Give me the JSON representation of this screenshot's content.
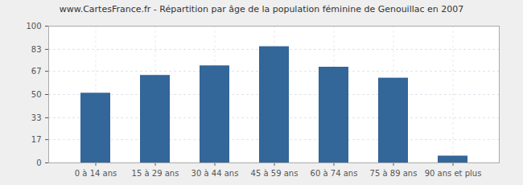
{
  "chart_data": {
    "type": "bar",
    "title": "www.CartesFrance.fr - Répartition par âge de la population féminine de Genouillac en 2007",
    "categories": [
      "0 à 14 ans",
      "15 à 29 ans",
      "30 à 44 ans",
      "45 à 59 ans",
      "60 à 74 ans",
      "75 à 89 ans",
      "90 ans et plus"
    ],
    "values": [
      51,
      64,
      71,
      85,
      70,
      62,
      5
    ],
    "color": "#336699",
    "ylim": [
      0,
      100
    ],
    "yticks": [
      0,
      17,
      33,
      50,
      67,
      83,
      100
    ],
    "grid": true
  }
}
